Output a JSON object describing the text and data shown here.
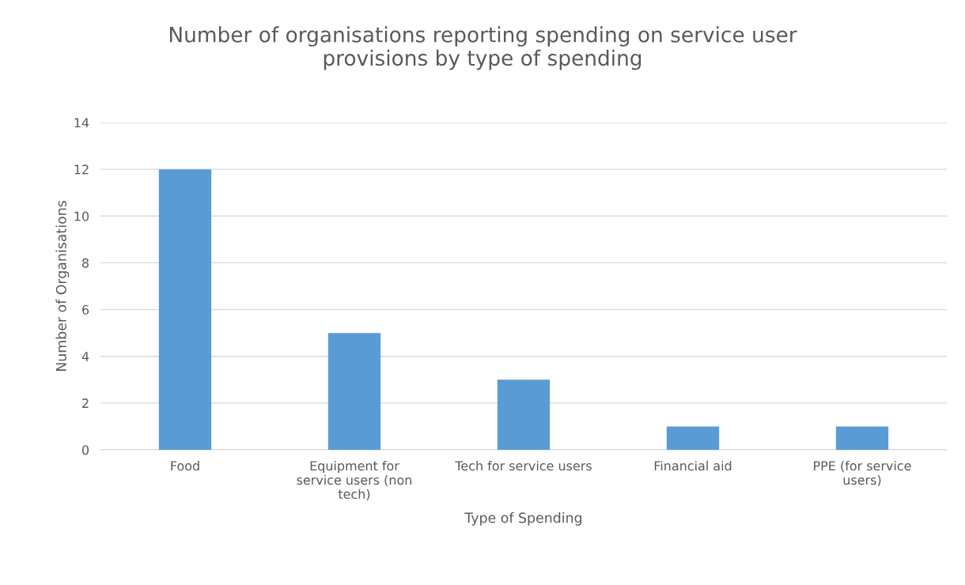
{
  "chart_data": {
    "type": "bar",
    "title": "Number of organisations reporting spending on service user\nprovisions by type of spending",
    "xlabel": "Type of Spending",
    "ylabel": "Number of Organisations",
    "categories": [
      "Food",
      "Equipment for\nservice users (non\ntech)",
      "Tech for service users",
      "Financial aid",
      "PPE (for service\nusers)"
    ],
    "values": [
      12,
      5,
      3,
      1,
      1
    ],
    "color": "#5b9bd5",
    "ylim": [
      0,
      14
    ],
    "yticks": [
      0,
      2,
      4,
      6,
      8,
      10,
      12,
      14
    ],
    "grid": "y",
    "legend": false
  }
}
